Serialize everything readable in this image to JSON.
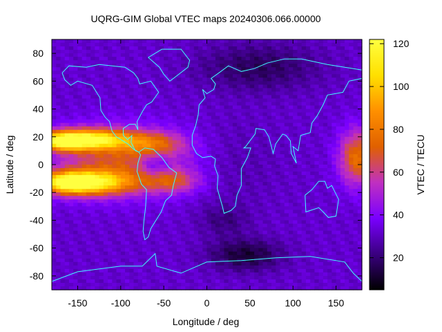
{
  "chart_data": {
    "type": "heatmap",
    "title": "UQRG-GIM Global VTEC maps 20240306.066.00000",
    "xlabel": "Longitude / deg",
    "ylabel": "Latitude / deg",
    "colorbar_label": "VTEC / TECU",
    "xlim": [
      -180,
      180
    ],
    "ylim": [
      -90,
      90
    ],
    "x_ticks": [
      -150,
      -100,
      -50,
      0,
      50,
      100,
      150
    ],
    "y_ticks": [
      -80,
      -60,
      -40,
      -20,
      0,
      20,
      40,
      60,
      80
    ],
    "colorbar_range": [
      5,
      122
    ],
    "colorbar_ticks": [
      20,
      40,
      60,
      80,
      100,
      120
    ],
    "colormap": [
      "#000000",
      "#3a0080",
      "#7a00ff",
      "#c030c0",
      "#e06000",
      "#ff9000",
      "#ffe000",
      "#ffff40"
    ],
    "coastline_color": "#40ffff",
    "grid_resolution_deg": {
      "lon": 5,
      "lat": 2.5
    },
    "vtec_features": [
      {
        "lon": -145,
        "lat": 18,
        "sigma_lon": 38,
        "sigma_lat": 5,
        "value": 85
      },
      {
        "lon": -145,
        "lat": -13,
        "sigma_lon": 38,
        "sigma_lat": 6,
        "value": 85
      },
      {
        "lon": -165,
        "lat": 16,
        "sigma_lon": 15,
        "sigma_lat": 4,
        "value": 35
      },
      {
        "lon": -160,
        "lat": -13,
        "sigma_lon": 15,
        "sigma_lat": 4,
        "value": 30
      },
      {
        "lon": -100,
        "lat": 3,
        "sigma_lon": 55,
        "sigma_lat": 16,
        "value": 35
      },
      {
        "lon": -60,
        "lat": 15,
        "sigma_lon": 25,
        "sigma_lat": 6,
        "value": 25
      },
      {
        "lon": -40,
        "lat": -12,
        "sigma_lon": 22,
        "sigma_lat": 6,
        "value": 28
      },
      {
        "lon": -60,
        "lat": 0,
        "sigma_lon": 13,
        "sigma_lat": 6,
        "value": -20
      },
      {
        "lon": 175,
        "lat": 5,
        "sigma_lon": 15,
        "sigma_lat": 14,
        "value": 45
      },
      {
        "lon": 30,
        "lat": 0,
        "sigma_lon": 35,
        "sigma_lat": 22,
        "value": -5
      },
      {
        "lon": 60,
        "lat": 70,
        "sigma_lon": 50,
        "sigma_lat": 12,
        "value": -15
      },
      {
        "lon": 45,
        "lat": -65,
        "sigma_lon": 30,
        "sigma_lat": 8,
        "value": -20
      },
      {
        "lon": 20,
        "lat": -40,
        "sigma_lon": 20,
        "sigma_lat": 8,
        "value": -10
      }
    ],
    "vtec_baseline": 32
  }
}
